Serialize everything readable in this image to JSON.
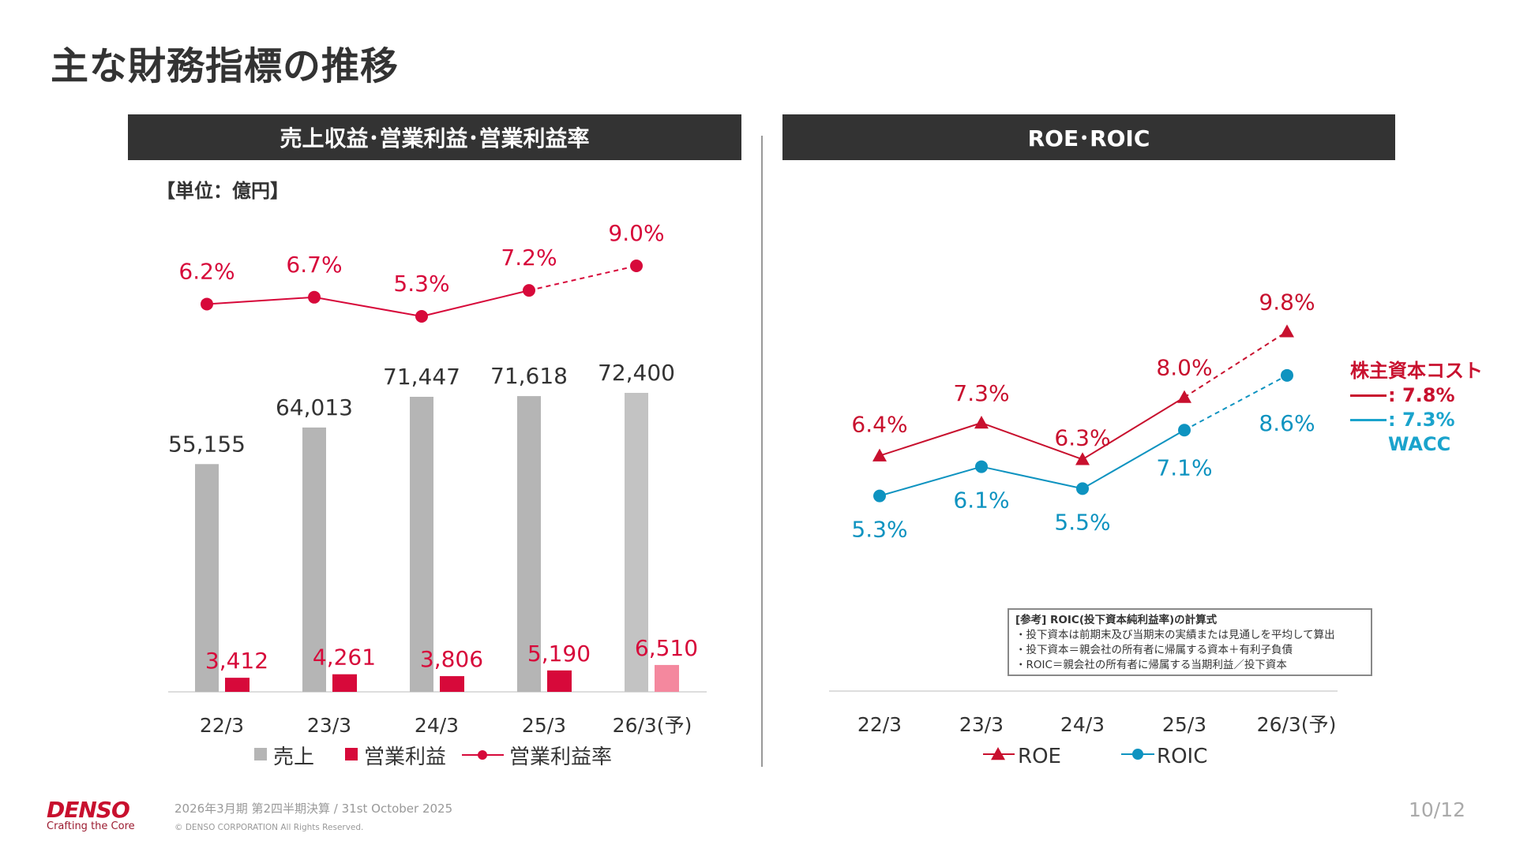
{
  "title": "主な財務指標の推移",
  "left_panel": {
    "header": "売上収益･営業利益･営業利益率",
    "unit": "【単位：億円】"
  },
  "right_panel": {
    "header": "ROE･ROIC"
  },
  "chart_data": [
    {
      "type": "bar",
      "categories": [
        "22/3",
        "23/3",
        "24/3",
        "25/3",
        "26/3(予)"
      ],
      "series": [
        {
          "name": "売上",
          "values": [
            55155,
            64013,
            71447,
            71618,
            72400
          ],
          "labels": [
            "55,155",
            "64,013",
            "71,447",
            "71,618",
            "72,400"
          ],
          "color": "#b5b5b5",
          "forecast_color": "#c3c3c3"
        },
        {
          "name": "営業利益",
          "values": [
            3412,
            4261,
            3806,
            5190,
            6510
          ],
          "labels": [
            "3,412",
            "4,261",
            "3,806",
            "5,190",
            "6,510"
          ],
          "color": "#d7093a",
          "forecast_color": "#f4889e"
        },
        {
          "name": "営業利益率",
          "type": "line",
          "values": [
            6.2,
            6.7,
            5.3,
            7.2,
            9.0
          ],
          "labels": [
            "6.2%",
            "6.7%",
            "5.3%",
            "7.2%",
            "9.0%"
          ],
          "color": "#d7093a",
          "forecast_dashed": true
        }
      ],
      "legend": [
        "売上",
        "営業利益",
        "営業利益率"
      ],
      "legend_position": "bottom",
      "grid": false
    },
    {
      "type": "line",
      "categories": [
        "22/3",
        "23/3",
        "24/3",
        "25/3",
        "26/3(予)"
      ],
      "series": [
        {
          "name": "ROE",
          "values": [
            6.4,
            7.3,
            6.3,
            8.0,
            9.8
          ],
          "labels": [
            "6.4%",
            "7.3%",
            "6.3%",
            "8.0%",
            "9.8%"
          ],
          "color": "#c8102e",
          "marker": "triangle",
          "forecast_dashed": true
        },
        {
          "name": "ROIC",
          "values": [
            5.3,
            6.1,
            5.5,
            7.1,
            8.6
          ],
          "labels": [
            "5.3%",
            "6.1%",
            "5.5%",
            "7.1%",
            "8.6%"
          ],
          "color": "#0e93c0",
          "marker": "circle",
          "forecast_dashed": true
        }
      ],
      "legend": [
        "ROE",
        "ROIC"
      ],
      "legend_position": "bottom",
      "grid": false,
      "annotations": {
        "cost_title": "株主資本コスト",
        "cost_equity": ": 7.8%",
        "wacc_value": ": 7.3%",
        "wacc_label": "WACC"
      }
    }
  ],
  "note": {
    "heading": "[参考] ROIC(投下資本純利益率)の計算式",
    "lines": [
      "・投下資本は前期末及び当期末の実績または見通しを平均して算出",
      "・投下資本＝親会社の所有者に帰属する資本＋有利子負債",
      "・ROIC＝親会社の所有者に帰属する当期利益／投下資本"
    ]
  },
  "footer": {
    "logo": "DENSO",
    "tagline": "Crafting the Core",
    "period": "2026年3月期 第2四半期決算 / 31st October 2025",
    "copyright": "© DENSO CORPORATION All Rights Reserved.",
    "page": "10/12"
  },
  "colors": {
    "header_bg": "#333333",
    "red": "#d7093a",
    "roe": "#c8102e",
    "roic": "#0e93c0"
  }
}
